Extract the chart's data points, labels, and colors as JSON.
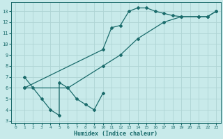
{
  "line1_x": [
    1,
    2,
    3,
    4,
    5,
    5,
    6,
    7,
    8,
    9,
    10
  ],
  "line1_y": [
    7.0,
    6.0,
    5.0,
    4.0,
    3.5,
    6.5,
    6.0,
    5.0,
    4.5,
    4.0,
    5.5
  ],
  "line2_x": [
    1,
    6,
    10,
    12,
    14,
    17,
    19,
    21,
    22,
    23
  ],
  "line2_y": [
    6.0,
    6.0,
    8.0,
    9.0,
    10.5,
    12.0,
    12.5,
    12.5,
    12.5,
    13.0
  ],
  "line3_x": [
    1,
    10,
    11,
    12,
    13,
    14,
    15,
    16,
    17,
    18,
    19,
    21,
    22,
    23
  ],
  "line3_y": [
    6.0,
    9.5,
    11.5,
    11.7,
    13.0,
    13.3,
    13.3,
    13.0,
    12.8,
    12.6,
    12.5,
    12.5,
    12.5,
    13.0
  ],
  "line_color": "#1a6b6b",
  "bg_color": "#c8eaea",
  "grid_color": "#aed4d4",
  "xlabel": "Humidex (Indice chaleur)",
  "xlim": [
    -0.5,
    23.5
  ],
  "ylim": [
    2.8,
    13.8
  ],
  "yticks": [
    3,
    4,
    5,
    6,
    7,
    8,
    9,
    10,
    11,
    12,
    13
  ],
  "xticks": [
    0,
    1,
    2,
    3,
    4,
    5,
    6,
    7,
    8,
    9,
    10,
    11,
    12,
    13,
    14,
    15,
    16,
    17,
    18,
    19,
    20,
    21,
    22,
    23
  ]
}
